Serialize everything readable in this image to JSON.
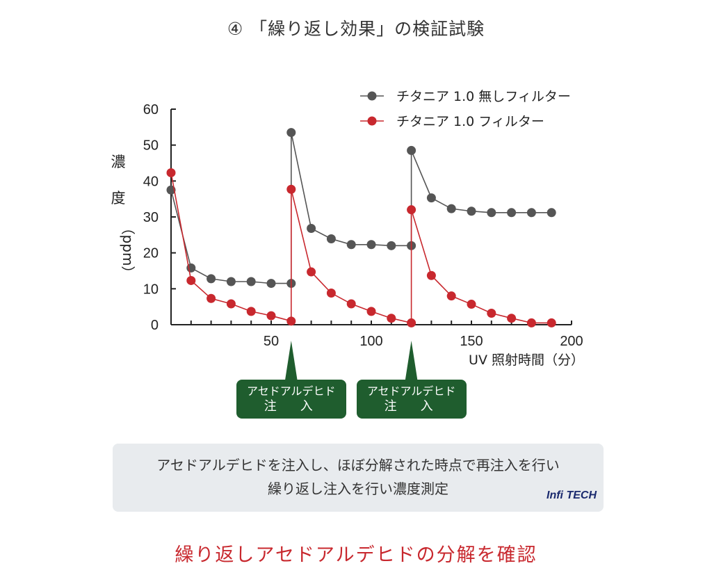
{
  "title": "④ 「繰り返し効果」の検証試験",
  "chart_data": {
    "type": "line",
    "xlabel": "UV 照射時間（分）",
    "ylabel_main": "濃　度",
    "ylabel_unit": "（ppm）",
    "xlim": [
      0,
      200
    ],
    "ylim": [
      0,
      60
    ],
    "x_ticks": [
      "50",
      "100",
      "150",
      "200"
    ],
    "y_ticks": [
      "0",
      "10",
      "20",
      "30",
      "40",
      "50",
      "60"
    ],
    "legend_position": "top-right",
    "series": [
      {
        "name": "チタニア 1.0 無しフィルター",
        "color": "#555555",
        "x": [
          0,
          10,
          20,
          30,
          40,
          50,
          60,
          60,
          70,
          80,
          90,
          100,
          110,
          120,
          120,
          130,
          140,
          150,
          160,
          170,
          180,
          190
        ],
        "y": [
          37.5,
          15.8,
          12.8,
          12.0,
          12.0,
          11.5,
          11.5,
          53.5,
          26.8,
          23.9,
          22.3,
          22.3,
          22.0,
          22.0,
          48.5,
          35.3,
          32.3,
          31.6,
          31.2,
          31.2,
          31.2,
          31.2
        ]
      },
      {
        "name": "チタニア 1.0 フィルター",
        "color": "#c8282e",
        "x": [
          0,
          10,
          20,
          30,
          40,
          50,
          60,
          60,
          70,
          80,
          90,
          100,
          110,
          120,
          120,
          130,
          140,
          150,
          160,
          170,
          180,
          190
        ],
        "y": [
          42.3,
          12.3,
          7.3,
          5.8,
          3.7,
          2.5,
          1.0,
          37.7,
          14.7,
          8.8,
          5.8,
          3.7,
          1.8,
          0.5,
          32.0,
          13.7,
          8.0,
          5.7,
          3.2,
          1.8,
          0.5,
          0.5
        ]
      }
    ],
    "annotations": [
      {
        "x": 60,
        "line1": "アセドアルデヒド",
        "line2": "注　入"
      },
      {
        "x": 120,
        "line1": "アセドアルデヒド",
        "line2": "注　入"
      }
    ]
  },
  "note": {
    "line1": "アセドアルデヒドを注入し、ほぼ分解された時点で再注入を行い",
    "line2": "繰り返し注入を行い濃度測定"
  },
  "logo": "Infi TECH",
  "conclusion": "繰り返しアセドアルデヒドの分解を確認"
}
